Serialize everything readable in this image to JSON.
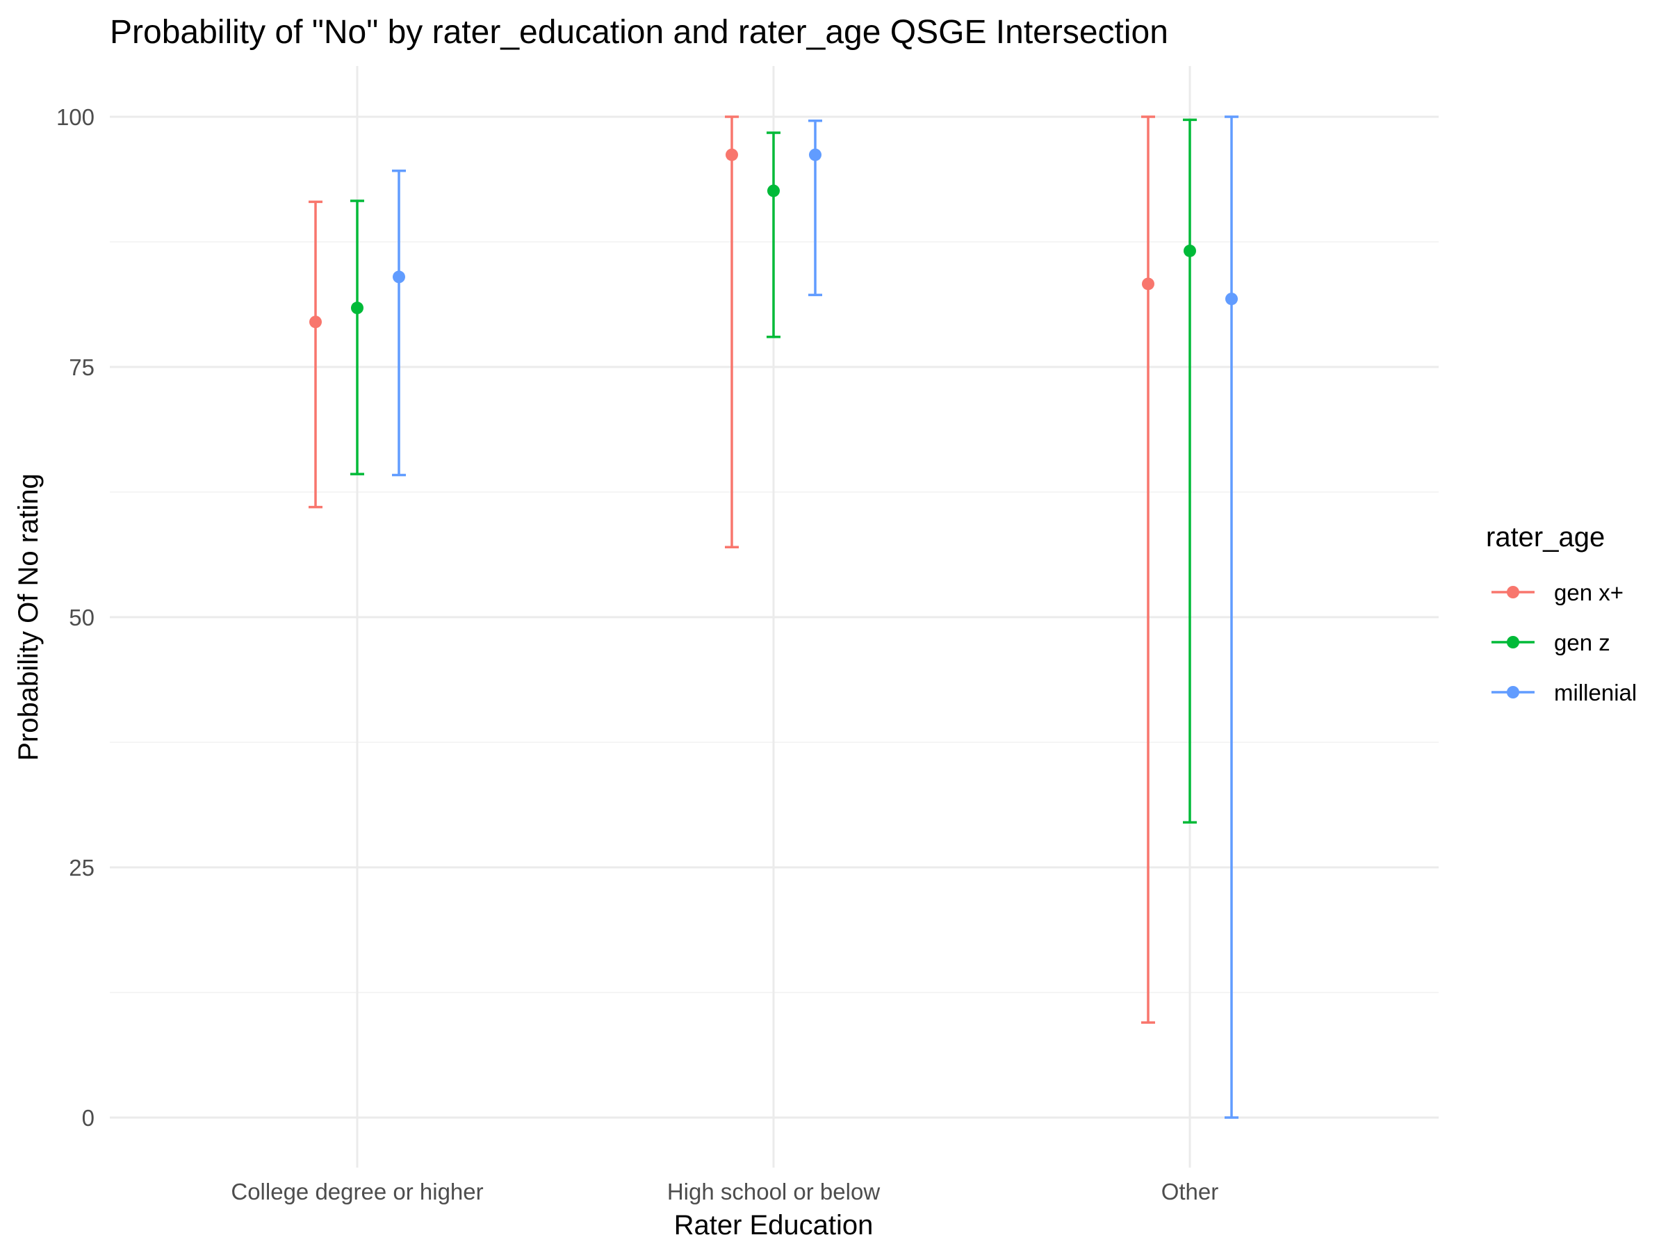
{
  "chart_data": {
    "type": "errorbar",
    "title": "Probability of \"No\" by rater_education and  rater_age  QSGE Intersection",
    "xlabel": "Rater Education",
    "ylabel": "Probability Of No rating",
    "categories": [
      "College degree or higher",
      "High school or below",
      "Other"
    ],
    "ylim": [
      -5,
      105
    ],
    "yticks": [
      0,
      25,
      50,
      75,
      100
    ],
    "grid": true,
    "legend": {
      "title": "rater_age",
      "position": "right"
    },
    "series": [
      {
        "name": "gen x+",
        "color": "#F8766D",
        "values": [
          79.5,
          96.2,
          83.3
        ],
        "lower": [
          61.0,
          57.0,
          9.5
        ],
        "upper": [
          91.5,
          100.0,
          100.0
        ]
      },
      {
        "name": "gen z",
        "color": "#00BA38",
        "values": [
          80.9,
          92.6,
          86.6
        ],
        "lower": [
          64.3,
          78.0,
          29.5
        ],
        "upper": [
          91.6,
          98.4,
          99.7
        ]
      },
      {
        "name": "millenial",
        "color": "#619CFF",
        "values": [
          84.0,
          96.2,
          81.8
        ],
        "lower": [
          64.2,
          82.2,
          0.0
        ],
        "upper": [
          94.6,
          99.6,
          100.0
        ]
      }
    ]
  }
}
